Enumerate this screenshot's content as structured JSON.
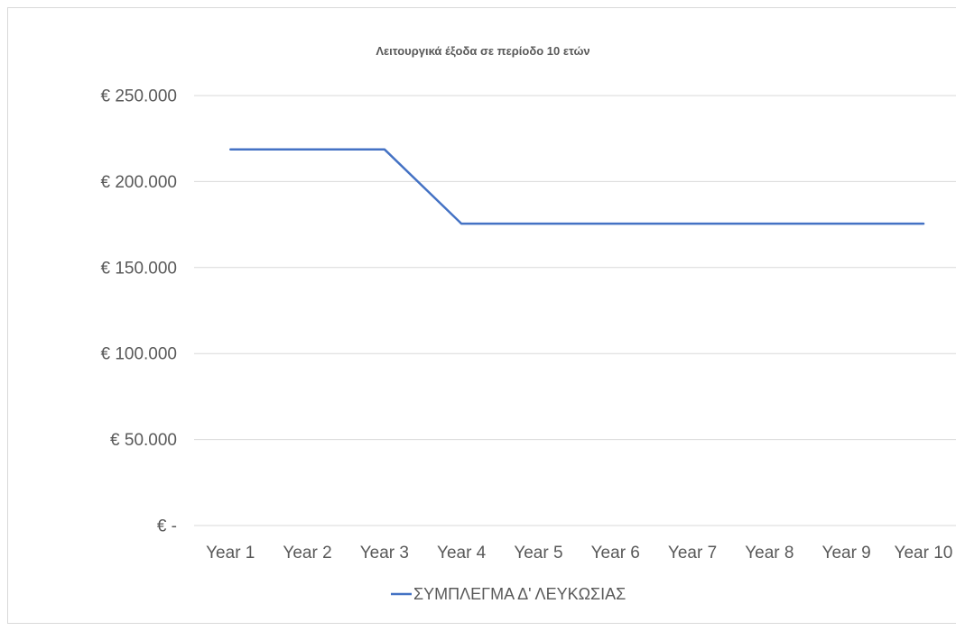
{
  "chart_data": {
    "type": "line",
    "title": "Λειτουργικά έξοδα σε περίοδο 10 ετών",
    "xlabel": "",
    "ylabel": "",
    "categories": [
      "Year 1",
      "Year 2",
      "Year 3",
      "Year 4",
      "Year 5",
      "Year 6",
      "Year 7",
      "Year 8",
      "Year 9",
      "Year 10"
    ],
    "series": [
      {
        "name": "ΣΥΜΠΛΕΓΜΑ Δ' ΛΕΥΚΩΣΙΑΣ",
        "values": [
          218700,
          218700,
          218700,
          175500,
          175500,
          175500,
          175500,
          175500,
          175500,
          175500
        ],
        "color": "#4472C4"
      }
    ],
    "yticks": [
      {
        "value": 250000,
        "label": "€ 250.000"
      },
      {
        "value": 200000,
        "label": "€ 200.000"
      },
      {
        "value": 150000,
        "label": "€ 150.000"
      },
      {
        "value": 100000,
        "label": "€ 100.000"
      },
      {
        "value": 50000,
        "label": "€ 50.000"
      },
      {
        "value": 0,
        "label": "€ -"
      }
    ],
    "ylim": [
      0,
      250000
    ],
    "grid": true,
    "legend": "bottom",
    "colors": {
      "gridline": "#D9D9D9",
      "text": "#595959",
      "frame": "#D9D9D9",
      "background": "#FFFFFF"
    }
  }
}
